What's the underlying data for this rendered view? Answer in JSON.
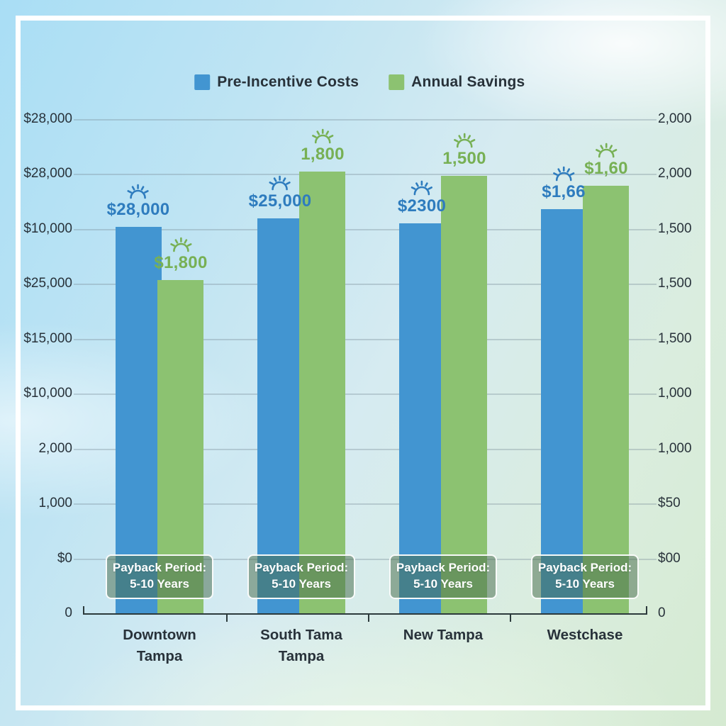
{
  "legend": {
    "items": [
      {
        "label": "Pre-Incentive Costs"
      },
      {
        "label": "Annual Savings"
      }
    ]
  },
  "chart_data": {
    "type": "bar",
    "title": "",
    "categories": [
      "Downtown Tampa",
      "South Tama Tampa",
      "New Tampa",
      "Westchase"
    ],
    "series": [
      {
        "name": "Pre-Incentive Costs",
        "color": "#4295d1",
        "label_color": "#2e7cbe",
        "bar_value_labels": [
          "$28,000",
          "$25,000",
          "$2300",
          "$1,66"
        ],
        "bar_height_fraction": [
          0.782,
          0.799,
          0.789,
          0.818
        ]
      },
      {
        "name": "Annual Savings",
        "color": "#8cc271",
        "label_color": "#77b054",
        "bar_value_labels": [
          "$1,800",
          "1,800",
          "1,500",
          "$1,60"
        ],
        "bar_height_fraction": [
          0.674,
          0.894,
          0.885,
          0.865
        ]
      }
    ],
    "left_axis_tick_labels": [
      "$28,000",
      "$28,000",
      "$10,000",
      "$25,000",
      "$15,000",
      "$10,000",
      "2,000",
      "1,000",
      "$0",
      "0"
    ],
    "right_axis_tick_labels": [
      "2,000",
      "2,000",
      "1,500",
      "1,500",
      "1,500",
      "1,000",
      "1,000",
      "$50",
      "$00",
      "0"
    ],
    "grid": true,
    "legend_position": "top-center",
    "annotation_badge": {
      "line1": "Payback Period:",
      "line2": "5-10 Years",
      "count": 4
    },
    "decoration": "sun-icon above every bar value label"
  },
  "colors": {
    "axis_text": "#28323a",
    "axis_line": "#2c3a3c",
    "gridline": "rgba(125,145,155,0.36)",
    "badge_fill": "rgba(72,110,76,0.52)",
    "badge_border": "#ffffff",
    "frame": "#ffffff"
  }
}
